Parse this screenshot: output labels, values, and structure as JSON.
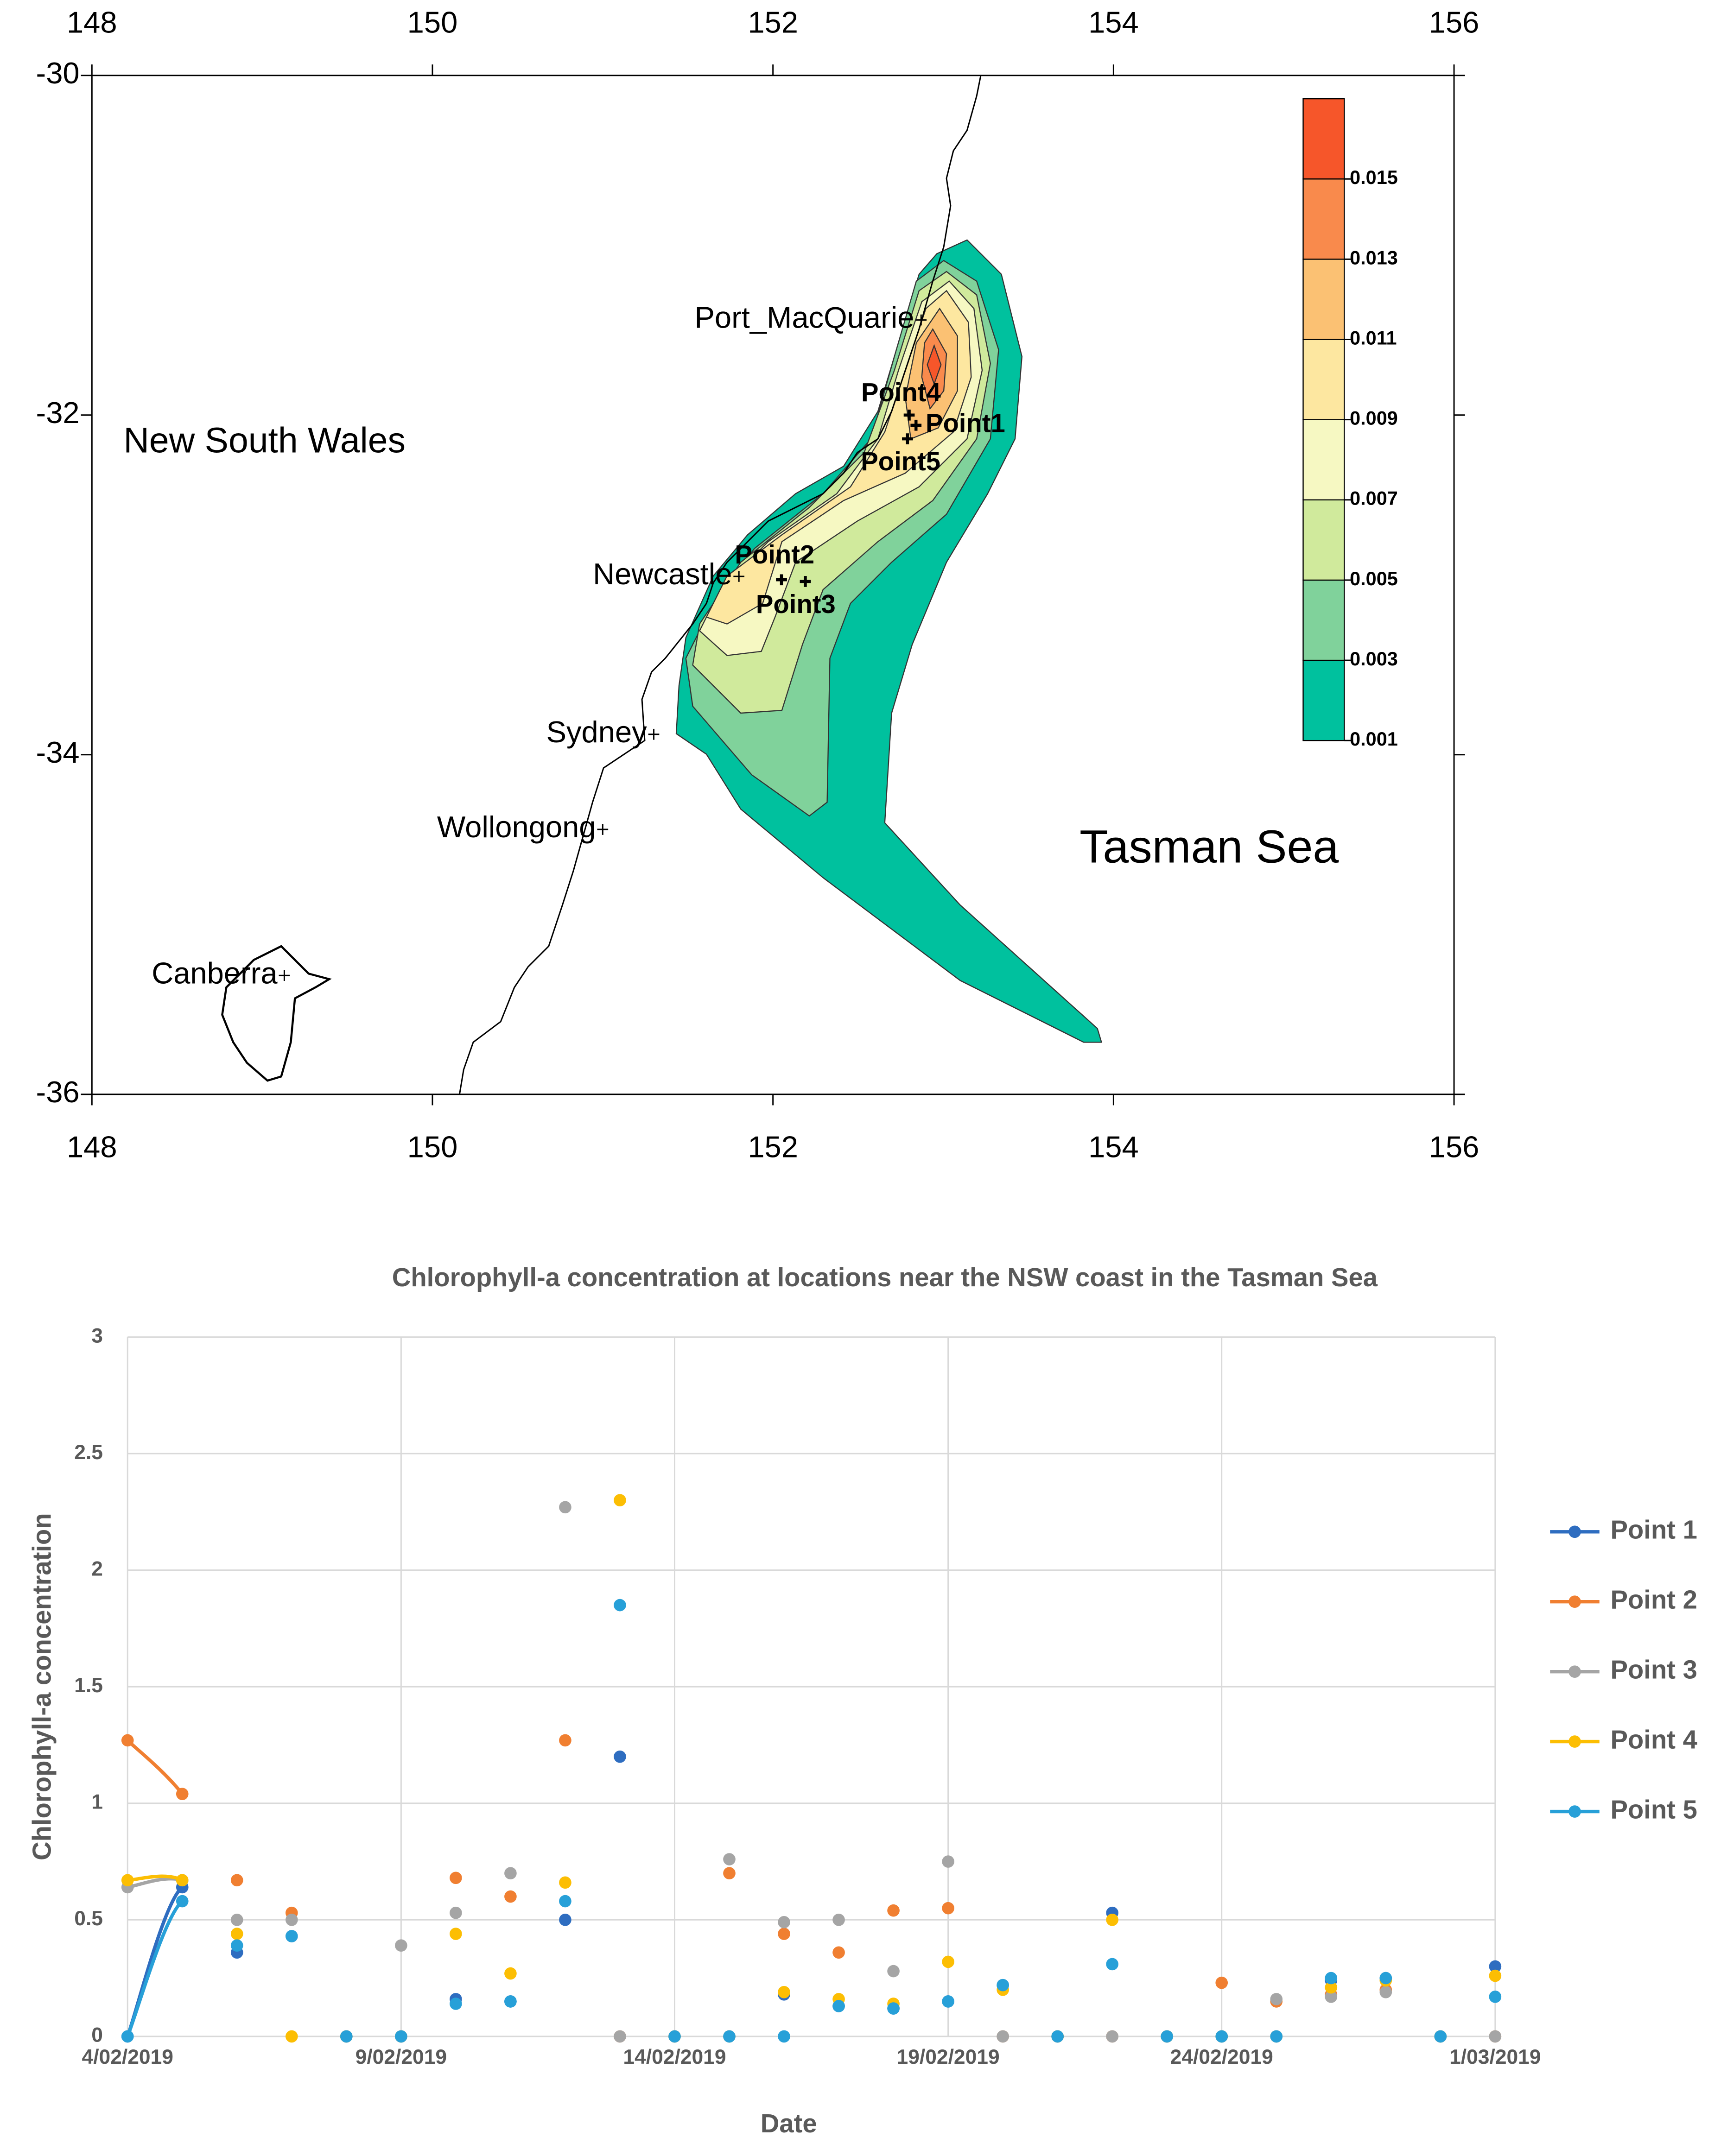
{
  "chart_data": [
    {
      "type": "contour",
      "xlim": [
        148,
        156
      ],
      "xticks": [
        148,
        150,
        152,
        154,
        156
      ],
      "ylim": [
        -36,
        -30
      ],
      "yticks": [
        -36,
        -34,
        -32,
        -30
      ],
      "colorbar_lim": [
        0.001,
        0.017
      ],
      "colorbar_ticks": [
        0.001,
        0.003,
        0.005,
        0.007,
        0.009,
        0.011,
        0.013,
        0.015
      ],
      "colors": [
        "#00c19e",
        "#80d29b",
        "#d0ea9c",
        "#f6f8c2",
        "#fde7a0",
        "#fbc173",
        "#f98a4c",
        "#f6562a"
      ],
      "regions": [
        "New South Wales",
        "Tasman Sea"
      ],
      "places": [
        {
          "name": "Port_MacQuarie",
          "lon": 152.87,
          "lat": -31.44
        },
        {
          "name": "Newcastle",
          "lon": 151.8,
          "lat": -32.95
        },
        {
          "name": "Sydney",
          "lon": 151.3,
          "lat": -33.88
        },
        {
          "name": "Wollongong",
          "lon": 151.0,
          "lat": -34.44
        },
        {
          "name": "Canberra",
          "lon": 149.13,
          "lat": -35.3
        }
      ],
      "points": [
        {
          "name": "Point4",
          "lon": 152.8,
          "lat": -32.0
        },
        {
          "name": "Point1",
          "lon": 152.84,
          "lat": -32.06
        },
        {
          "name": "Point5",
          "lon": 152.79,
          "lat": -32.14
        },
        {
          "name": "Point2",
          "lon": 152.05,
          "lat": -32.97
        },
        {
          "name": "Point3",
          "lon": 152.19,
          "lat": -32.98
        }
      ]
    },
    {
      "type": "line",
      "title": "Chlorophyll-a concentration at locations near the NSW coast in the Tasman Sea",
      "x_label": "Date",
      "y_label": "Chlorophyll-a concentration",
      "categories": [
        "4/02/2019",
        null,
        null,
        null,
        null,
        "9/02/2019",
        null,
        null,
        null,
        null,
        "14/02/2019",
        null,
        null,
        null,
        null,
        "19/02/2019",
        null,
        null,
        null,
        null,
        "24/02/2019",
        null,
        null,
        null,
        null,
        "1/03/2019"
      ],
      "ylim": [
        0,
        3
      ],
      "yticks": [
        0,
        0.5,
        1,
        1.5,
        2,
        2.5,
        3
      ],
      "grid": true,
      "legend": "right",
      "series": [
        {
          "name": "Point 1",
          "color": "#2e6dc0",
          "values": [
            0,
            0.64,
            0.36,
            0.43,
            0,
            0,
            0.16,
            0.15,
            0.5,
            1.2,
            0,
            0,
            0.18,
            0.13,
            0.12,
            0.15,
            0.22,
            0,
            0.53,
            0,
            0,
            0,
            0.24,
            0.25,
            0,
            0.3
          ]
        },
        {
          "name": "Point 2",
          "color": "#f07f31",
          "values": [
            1.27,
            1.04,
            0.67,
            0.53,
            0,
            0,
            0.68,
            0.6,
            1.27,
            0,
            0,
            0.7,
            0.44,
            0.36,
            0.54,
            0.55,
            0,
            0,
            0,
            0,
            0.23,
            0.15,
            0.18,
            0.2,
            0,
            0
          ]
        },
        {
          "name": "Point 3",
          "color": "#a5a5a5",
          "values": [
            0.64,
            0.67,
            0.5,
            0.5,
            0,
            0.39,
            0.53,
            0.7,
            2.27,
            0,
            0,
            0.76,
            0.49,
            0.5,
            0.28,
            0.75,
            0,
            0,
            0,
            0,
            0,
            0.16,
            0.17,
            0.19,
            0,
            0
          ]
        },
        {
          "name": "Point 4",
          "color": "#fcbe03",
          "values": [
            0.67,
            0.67,
            0.44,
            0,
            0,
            0,
            0.44,
            0.27,
            0.66,
            2.3,
            0,
            0,
            0.19,
            0.16,
            0.14,
            0.32,
            0.2,
            0,
            0.5,
            0,
            0,
            0,
            0.21,
            0.24,
            0,
            0.26
          ]
        },
        {
          "name": "Point 5",
          "color": "#27a0d8",
          "values": [
            0,
            0.58,
            0.39,
            0.43,
            0,
            0,
            0.14,
            0.15,
            0.58,
            1.85,
            0,
            0,
            0,
            0.13,
            0.12,
            0.15,
            0.22,
            0,
            0.31,
            0,
            0,
            0,
            0.25,
            0.25,
            0,
            0.17
          ]
        }
      ]
    }
  ]
}
